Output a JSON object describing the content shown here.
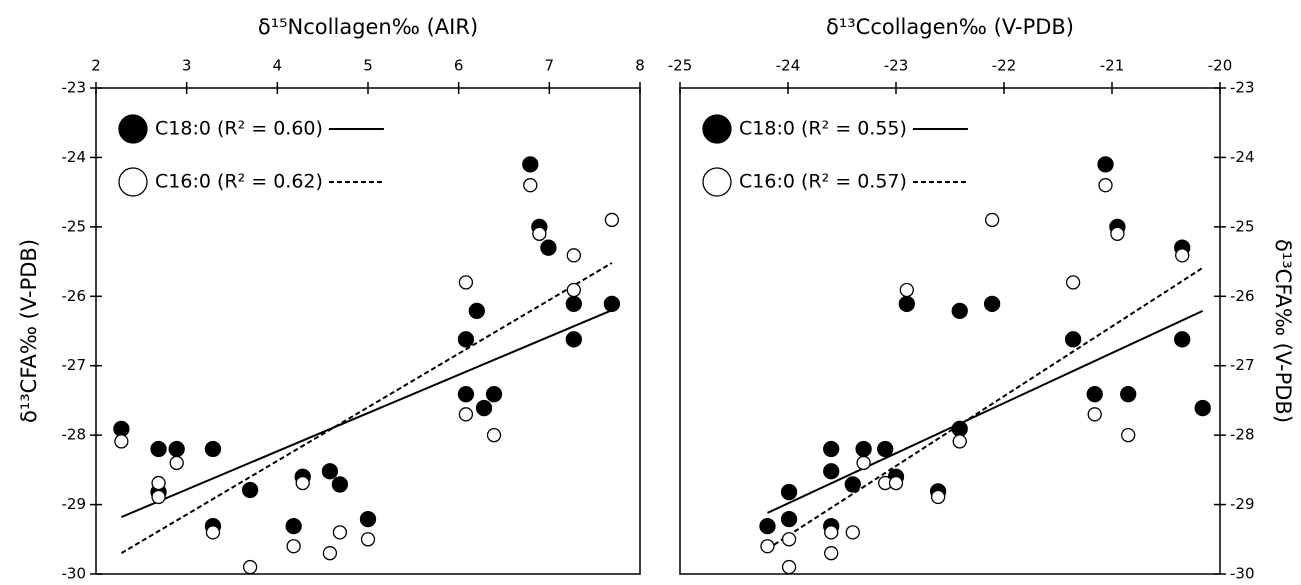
{
  "chart_data": [
    {
      "type": "scatter",
      "x_label": "δ¹⁵Ncollagen‰ (AIR)",
      "y_label": "δ¹³CFA‰ (V-PDB)",
      "y_axis_side": "left",
      "xlim": [
        2,
        8
      ],
      "xticks": [
        2,
        3,
        4,
        5,
        6,
        7,
        8
      ],
      "ylim": [
        -30,
        -23
      ],
      "yticks": [
        -30,
        -29,
        -28,
        -27,
        -26,
        -25,
        -24,
        -23
      ],
      "grid": false,
      "legend": "upper left",
      "series": [
        {
          "name": "C18:0 (R² = 0.60)",
          "marker": "filled",
          "color": "#000000",
          "x": [
            2.28,
            2.69,
            2.89,
            3.29,
            2.69,
            3.29,
            3.7,
            4.18,
            4.28,
            4.58,
            4.69,
            5.0,
            6.08,
            6.2,
            6.08,
            6.28,
            6.39,
            6.79,
            6.89,
            6.99,
            7.27,
            7.27,
            7.69
          ],
          "values": [
            -27.91,
            -28.2,
            -28.2,
            -28.2,
            -28.82,
            -29.31,
            -28.79,
            -29.31,
            -28.6,
            -28.52,
            -28.71,
            -29.21,
            -26.62,
            -26.21,
            -27.41,
            -27.61,
            -27.41,
            -24.1,
            -25.0,
            -25.3,
            -26.11,
            -26.62,
            -26.11
          ],
          "trend": {
            "x": [
              2.28,
              7.69
            ],
            "y": [
              -29.18,
              -26.2
            ],
            "style": "solid"
          }
        },
        {
          "name": "C16:0 (R² = 0.62)",
          "marker": "open",
          "color": "#000000",
          "x": [
            2.28,
            2.69,
            2.69,
            2.89,
            3.29,
            3.7,
            4.18,
            4.28,
            4.58,
            4.69,
            5.0,
            6.08,
            6.08,
            6.39,
            6.79,
            6.89,
            7.27,
            7.27,
            7.69
          ],
          "values": [
            -28.09,
            -28.69,
            -28.89,
            -28.4,
            -29.4,
            -29.9,
            -29.6,
            -28.69,
            -29.7,
            -29.4,
            -29.5,
            -25.8,
            -27.7,
            -28.0,
            -24.4,
            -25.1,
            -25.41,
            -25.91,
            -24.9
          ],
          "trend": {
            "x": [
              2.28,
              7.69
            ],
            "y": [
              -29.7,
              -25.52
            ],
            "style": "dashed"
          }
        }
      ]
    },
    {
      "type": "scatter",
      "x_label": "δ¹³Ccollagen‰ (V-PDB)",
      "y_label": "δ¹³CFA‰ (V-PDB)",
      "y_axis_side": "right",
      "xlim": [
        -25,
        -20
      ],
      "xticks": [
        -25,
        -24,
        -23,
        -22,
        -21,
        -20
      ],
      "ylim": [
        -30,
        -23
      ],
      "yticks": [
        -30,
        -29,
        -28,
        -27,
        -26,
        -25,
        -24,
        -23
      ],
      "grid": false,
      "legend": "upper left",
      "series": [
        {
          "name": "C18:0 (R² = 0.55)",
          "marker": "filled",
          "color": "#000000",
          "x": [
            -24.19,
            -23.99,
            -23.99,
            -23.6,
            -23.6,
            -23.6,
            -23.4,
            -23.3,
            -23.1,
            -23.0,
            -22.9,
            -22.61,
            -22.41,
            -22.41,
            -22.11,
            -21.36,
            -21.16,
            -21.06,
            -20.95,
            -20.85,
            -20.35,
            -20.35,
            -20.16
          ],
          "values": [
            -29.31,
            -28.82,
            -29.21,
            -28.2,
            -28.52,
            -29.31,
            -28.71,
            -28.2,
            -28.2,
            -28.6,
            -26.11,
            -28.81,
            -26.21,
            -27.91,
            -26.11,
            -26.62,
            -27.41,
            -24.1,
            -25.0,
            -27.41,
            -25.3,
            -26.62,
            -27.61
          ],
          "trend": {
            "x": [
              -24.19,
              -20.16
            ],
            "y": [
              -29.12,
              -26.21
            ],
            "style": "solid"
          }
        },
        {
          "name": "C16:0 (R² = 0.57)",
          "marker": "open",
          "color": "#000000",
          "x": [
            -24.19,
            -23.99,
            -23.99,
            -23.6,
            -23.6,
            -23.3,
            -23.4,
            -23.1,
            -23.0,
            -22.9,
            -22.61,
            -22.41,
            -22.11,
            -21.36,
            -21.16,
            -21.06,
            -20.95,
            -20.85,
            -20.35
          ],
          "values": [
            -29.6,
            -29.9,
            -29.5,
            -29.4,
            -29.7,
            -28.4,
            -29.4,
            -28.69,
            -28.69,
            -25.91,
            -28.89,
            -28.09,
            -24.9,
            -25.8,
            -27.7,
            -24.4,
            -25.1,
            -28.0,
            -25.41
          ],
          "trend": {
            "x": [
              -24.19,
              -20.16
            ],
            "y": [
              -29.64,
              -25.59
            ],
            "style": "dashed"
          }
        }
      ]
    }
  ]
}
